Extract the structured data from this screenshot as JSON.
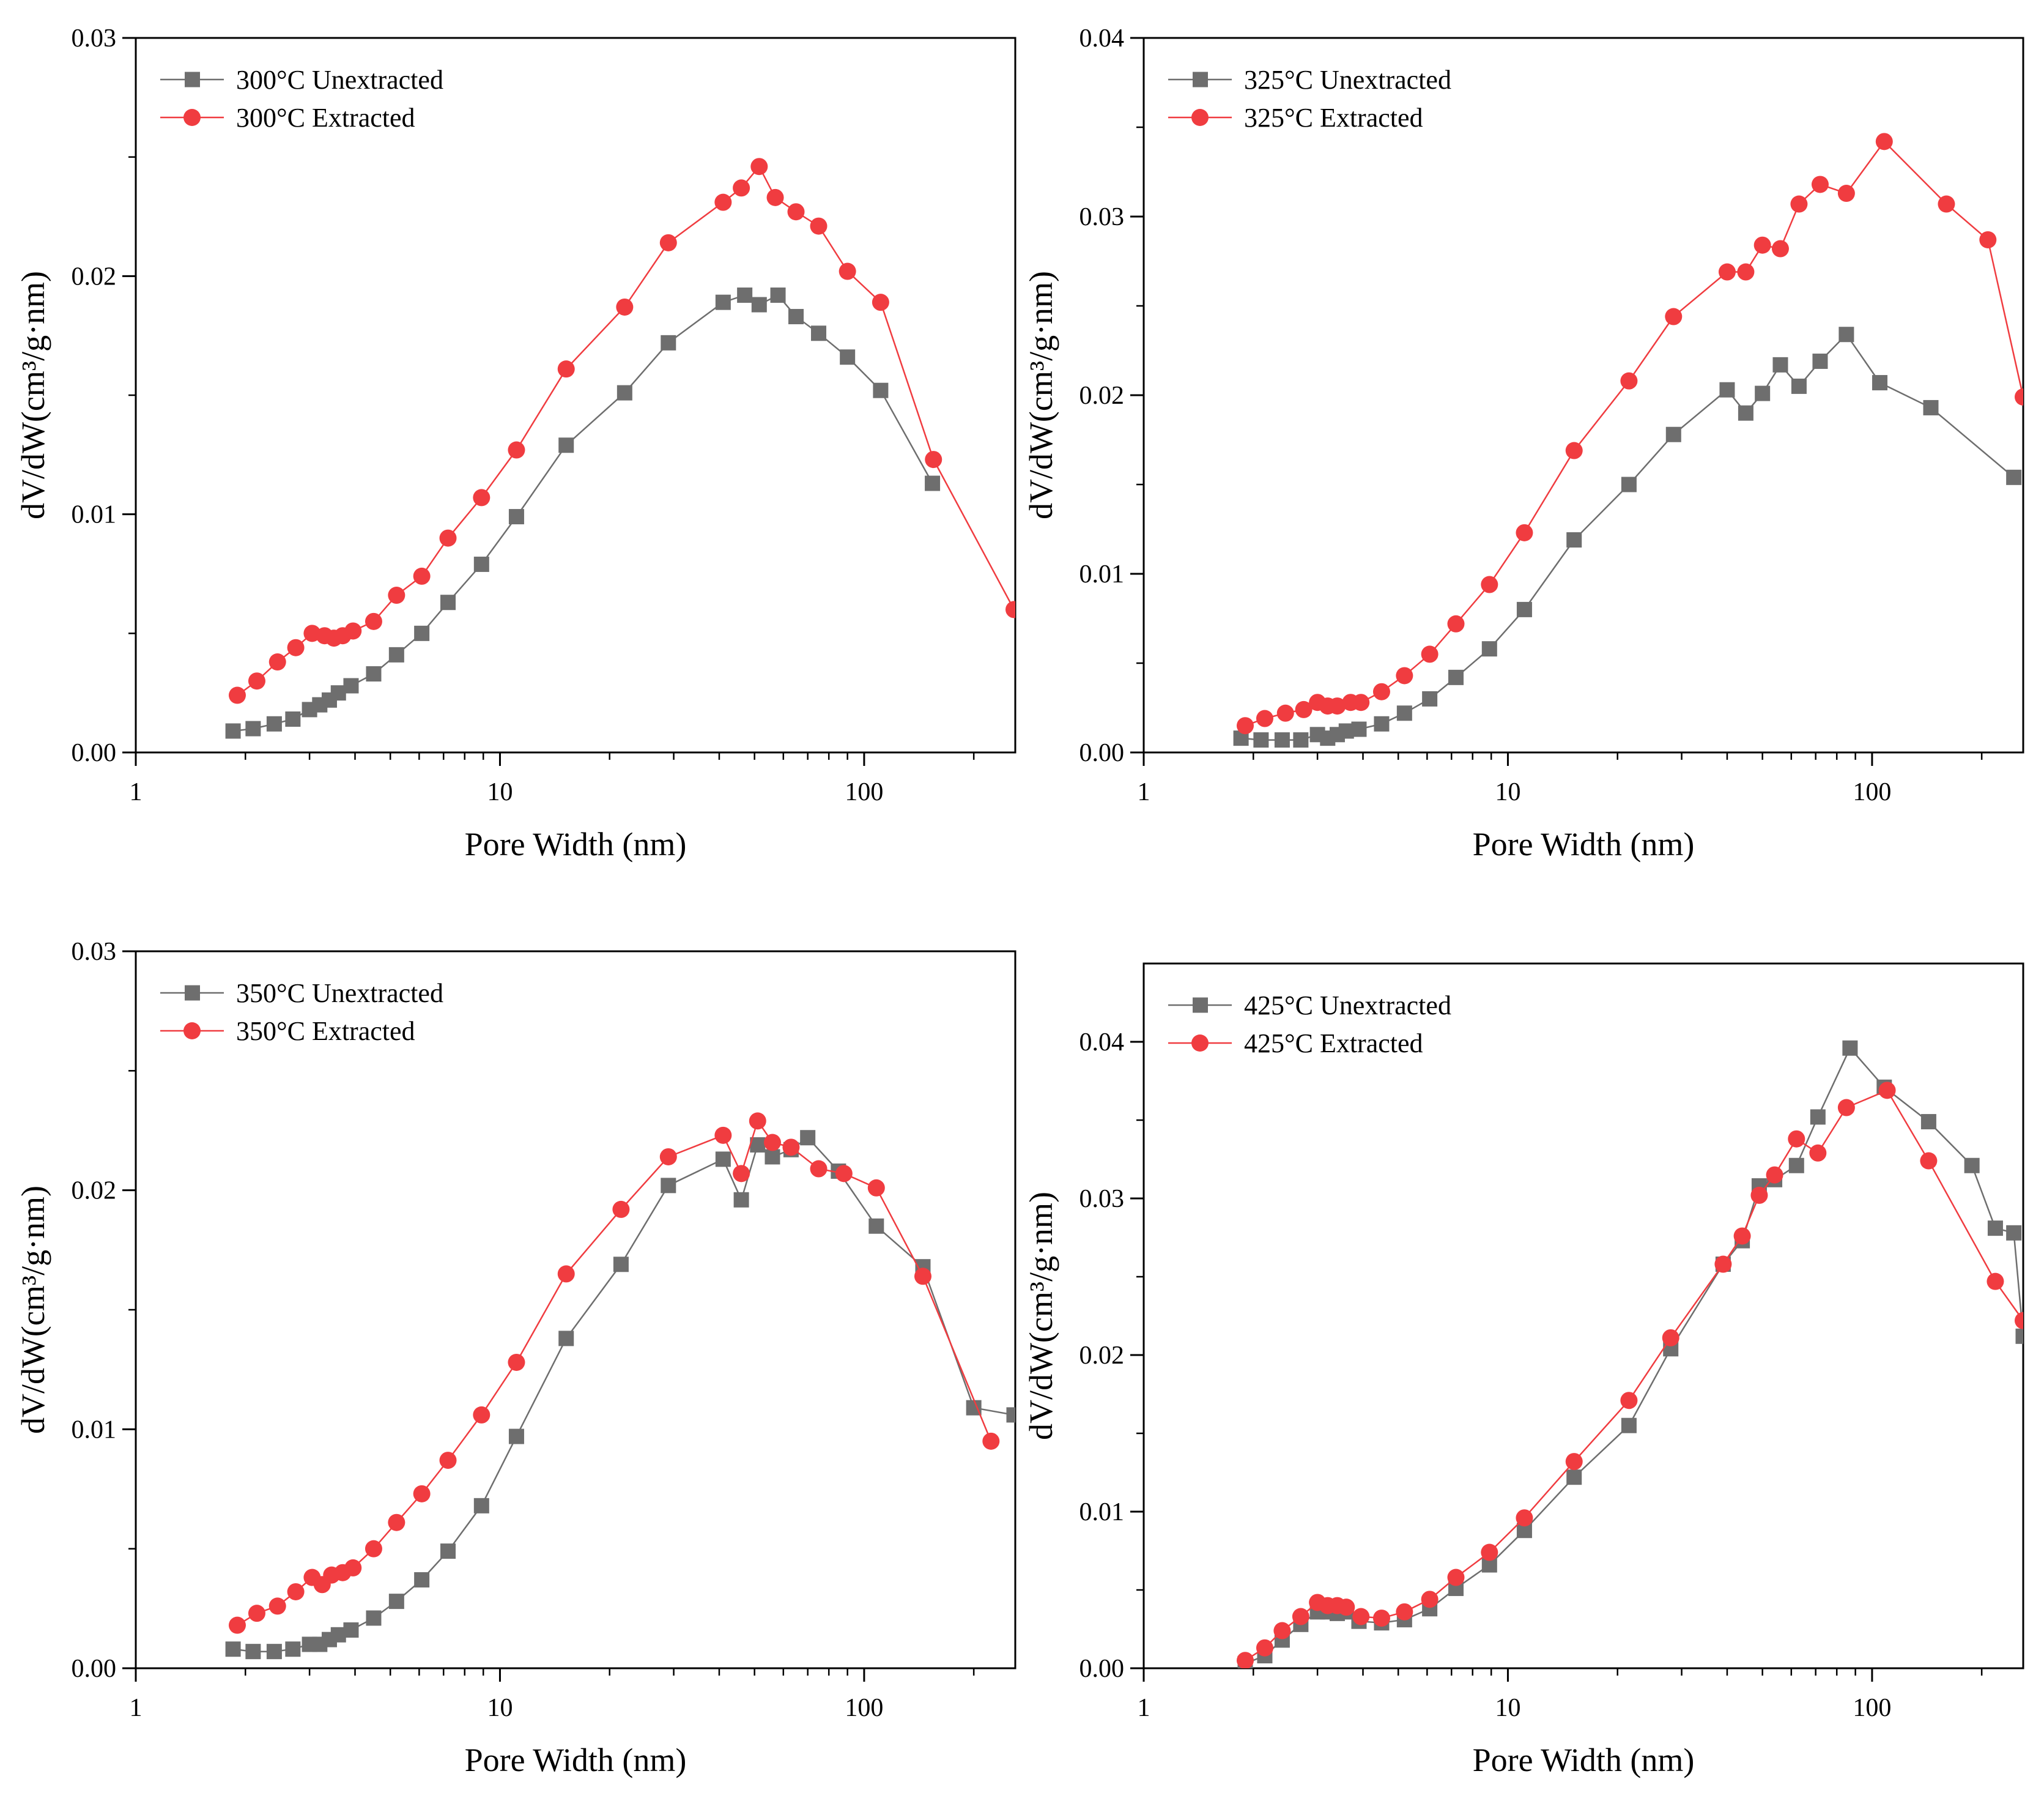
{
  "figure": {
    "colors": {
      "unextracted": "#6e6e6e",
      "extracted": "#f03c40",
      "axis": "#000000"
    }
  },
  "chart_data": [
    {
      "type": "line",
      "xscale": "log",
      "xlabel": "Pore Width (nm)",
      "ylabel": "dV/dW(cm³/g·nm)",
      "xlim": [
        1,
        260
      ],
      "ylim": [
        0,
        0.03
      ],
      "xticks": [
        1,
        10,
        100
      ],
      "xtick_labels": [
        "1",
        "10",
        "100"
      ],
      "yticks": [
        0,
        0.01,
        0.02,
        0.03
      ],
      "ytick_labels": [
        "0.00",
        "0.01",
        "0.02",
        "0.03"
      ],
      "legend_position": "top-left",
      "series": [
        {
          "name": "300°C Unextracted",
          "marker": "square",
          "x": [
            1.85,
            2.1,
            2.4,
            2.7,
            3.0,
            3.2,
            3.4,
            3.6,
            3.9,
            4.5,
            5.2,
            6.1,
            7.2,
            8.9,
            11.1,
            15.2,
            22.0,
            29.0,
            41.0,
            47.0,
            51.5,
            58.0,
            65.0,
            75.0,
            90.0,
            111.0,
            154.0
          ],
          "y": [
            0.0009,
            0.001,
            0.0012,
            0.0014,
            0.0018,
            0.002,
            0.0022,
            0.0025,
            0.0028,
            0.0033,
            0.0041,
            0.005,
            0.0063,
            0.0079,
            0.0099,
            0.0129,
            0.0151,
            0.0172,
            0.0189,
            0.0192,
            0.0188,
            0.0192,
            0.0183,
            0.0176,
            0.0166,
            0.0152,
            0.0113
          ]
        },
        {
          "name": "300°C Extracted",
          "marker": "circle",
          "x": [
            1.9,
            2.15,
            2.45,
            2.75,
            3.05,
            3.3,
            3.5,
            3.7,
            3.95,
            4.5,
            5.2,
            6.1,
            7.2,
            8.9,
            11.1,
            15.2,
            22.0,
            29.0,
            41.0,
            46.0,
            51.5,
            57.0,
            65.0,
            75.0,
            90.0,
            111.0,
            155.0,
            258.0
          ],
          "y": [
            0.0024,
            0.003,
            0.0038,
            0.0044,
            0.005,
            0.0049,
            0.0048,
            0.0049,
            0.0051,
            0.0055,
            0.0066,
            0.0074,
            0.009,
            0.0107,
            0.0127,
            0.0161,
            0.0187,
            0.0214,
            0.0231,
            0.0237,
            0.0246,
            0.0233,
            0.0227,
            0.0221,
            0.0202,
            0.0189,
            0.0123,
            0.006
          ]
        }
      ]
    },
    {
      "type": "line",
      "xscale": "log",
      "xlabel": "Pore Width (nm)",
      "ylabel": "dV/dW(cm³/g·nm)",
      "xlim": [
        1,
        260
      ],
      "ylim": [
        0,
        0.04
      ],
      "xticks": [
        1,
        10,
        100
      ],
      "xtick_labels": [
        "1",
        "10",
        "100"
      ],
      "yticks": [
        0,
        0.01,
        0.02,
        0.03,
        0.04
      ],
      "ytick_labels": [
        "0.00",
        "0.01",
        "0.02",
        "0.03",
        "0.04"
      ],
      "legend_position": "top-left",
      "series": [
        {
          "name": "325°C Unextracted",
          "marker": "square",
          "x": [
            1.85,
            2.1,
            2.4,
            2.7,
            3.0,
            3.2,
            3.4,
            3.6,
            3.9,
            4.5,
            5.2,
            6.1,
            7.2,
            8.9,
            11.1,
            15.2,
            21.5,
            28.5,
            40.0,
            45.0,
            50.0,
            56.0,
            63.0,
            72.0,
            85.0,
            105.0,
            145.0,
            245.0
          ],
          "y": [
            0.0008,
            0.0007,
            0.0007,
            0.0007,
            0.001,
            0.0008,
            0.001,
            0.0012,
            0.0013,
            0.0016,
            0.0022,
            0.003,
            0.0042,
            0.0058,
            0.008,
            0.0119,
            0.015,
            0.0178,
            0.0203,
            0.019,
            0.0201,
            0.0217,
            0.0205,
            0.0219,
            0.0234,
            0.0207,
            0.0193,
            0.0154
          ]
        },
        {
          "name": "325°C Extracted",
          "marker": "circle",
          "x": [
            1.9,
            2.15,
            2.45,
            2.75,
            3.0,
            3.2,
            3.4,
            3.7,
            3.95,
            4.5,
            5.2,
            6.1,
            7.2,
            8.9,
            11.1,
            15.2,
            21.5,
            28.5,
            40.0,
            45.0,
            50.0,
            56.0,
            63.0,
            72.0,
            85.0,
            108.0,
            160.0,
            208.0,
            260.0
          ],
          "y": [
            0.0015,
            0.0019,
            0.0022,
            0.0024,
            0.0028,
            0.0026,
            0.0026,
            0.0028,
            0.0028,
            0.0034,
            0.0043,
            0.0055,
            0.0072,
            0.0094,
            0.0123,
            0.0169,
            0.0208,
            0.0244,
            0.0269,
            0.0269,
            0.0284,
            0.0282,
            0.0307,
            0.0318,
            0.0313,
            0.0342,
            0.0307,
            0.0287,
            0.0199
          ]
        }
      ]
    },
    {
      "type": "line",
      "xscale": "log",
      "xlabel": "Pore Width (nm)",
      "ylabel": "dV/dW(cm³/g·nm)",
      "xlim": [
        1,
        260
      ],
      "ylim": [
        0,
        0.03
      ],
      "xticks": [
        1,
        10,
        100
      ],
      "xtick_labels": [
        "1",
        "10",
        "100"
      ],
      "yticks": [
        0,
        0.01,
        0.02,
        0.03
      ],
      "ytick_labels": [
        "0.00",
        "0.01",
        "0.02",
        "0.03"
      ],
      "legend_position": "top-left",
      "series": [
        {
          "name": "350°C Unextracted",
          "marker": "square",
          "x": [
            1.85,
            2.1,
            2.4,
            2.7,
            3.0,
            3.2,
            3.4,
            3.6,
            3.9,
            4.5,
            5.2,
            6.1,
            7.2,
            8.9,
            11.1,
            15.2,
            21.5,
            29.0,
            41.0,
            46.0,
            51.0,
            56.0,
            63.0,
            70.0,
            85.0,
            108.0,
            145.0,
            200.0,
            258.0
          ],
          "y": [
            0.0008,
            0.0007,
            0.0007,
            0.0008,
            0.001,
            0.001,
            0.0012,
            0.0014,
            0.0016,
            0.0021,
            0.0028,
            0.0037,
            0.0049,
            0.0068,
            0.0097,
            0.0138,
            0.0169,
            0.0202,
            0.0213,
            0.0196,
            0.0219,
            0.0214,
            0.0217,
            0.0222,
            0.0208,
            0.0185,
            0.0168,
            0.0109,
            0.0106
          ]
        },
        {
          "name": "350°C Extracted",
          "marker": "circle",
          "x": [
            1.9,
            2.15,
            2.45,
            2.75,
            3.05,
            3.25,
            3.45,
            3.7,
            3.95,
            4.5,
            5.2,
            6.1,
            7.2,
            8.9,
            11.1,
            15.2,
            21.5,
            29.0,
            41.0,
            46.0,
            51.0,
            56.0,
            63.0,
            75.0,
            88.0,
            108.0,
            145.0,
            223.0
          ],
          "y": [
            0.0018,
            0.0023,
            0.0026,
            0.0032,
            0.0038,
            0.0035,
            0.0039,
            0.004,
            0.0042,
            0.005,
            0.0061,
            0.0073,
            0.0087,
            0.0106,
            0.0128,
            0.0165,
            0.0192,
            0.0214,
            0.0223,
            0.0207,
            0.0229,
            0.022,
            0.0218,
            0.0209,
            0.0207,
            0.0201,
            0.0164,
            0.0095
          ]
        }
      ]
    },
    {
      "type": "line",
      "xscale": "log",
      "xlabel": "Pore Width (nm)",
      "ylabel": "dV/dW(cm³/g·nm)",
      "xlim": [
        1,
        260
      ],
      "ylim": [
        0,
        0.045
      ],
      "xticks": [
        1,
        10,
        100
      ],
      "xtick_labels": [
        "1",
        "10",
        "100"
      ],
      "yticks": [
        0,
        0.01,
        0.02,
        0.03,
        0.04
      ],
      "ytick_labels": [
        "0.00",
        "0.01",
        "0.02",
        "0.03",
        "0.04"
      ],
      "legend_position": "top-left",
      "series": [
        {
          "name": "425°C Unextracted",
          "marker": "square",
          "x": [
            1.9,
            2.15,
            2.4,
            2.7,
            3.0,
            3.2,
            3.4,
            3.6,
            3.9,
            4.5,
            5.2,
            6.1,
            7.2,
            8.9,
            11.1,
            15.2,
            21.5,
            28.0,
            39.0,
            44.0,
            49.0,
            54.0,
            62.0,
            71.0,
            87.0,
            108.0,
            143.0,
            188.0,
            218.0,
            245.0,
            260.0
          ],
          "y": [
            0.0003,
            0.0008,
            0.0018,
            0.0028,
            0.0036,
            0.0036,
            0.0035,
            0.0036,
            0.003,
            0.0029,
            0.0031,
            0.0038,
            0.0051,
            0.0066,
            0.0088,
            0.0122,
            0.0155,
            0.0204,
            0.0258,
            0.0273,
            0.0308,
            0.0312,
            0.0321,
            0.0352,
            0.0396,
            0.0371,
            0.0349,
            0.0321,
            0.0281,
            0.0278,
            0.0212
          ]
        },
        {
          "name": "425°C Extracted",
          "marker": "circle",
          "x": [
            1.9,
            2.15,
            2.4,
            2.7,
            3.0,
            3.2,
            3.4,
            3.6,
            3.95,
            4.5,
            5.2,
            6.1,
            7.2,
            8.9,
            11.1,
            15.2,
            21.5,
            28.0,
            39.0,
            44.0,
            49.0,
            54.0,
            62.0,
            71.0,
            85.0,
            110.0,
            143.0,
            218.0,
            260.0
          ],
          "y": [
            0.0005,
            0.0013,
            0.0024,
            0.0033,
            0.0042,
            0.004,
            0.004,
            0.0039,
            0.0033,
            0.0032,
            0.0036,
            0.0044,
            0.0058,
            0.0074,
            0.0096,
            0.0132,
            0.0171,
            0.0211,
            0.0258,
            0.0276,
            0.0302,
            0.0315,
            0.0338,
            0.0329,
            0.0358,
            0.0369,
            0.0324,
            0.0247,
            0.0222
          ]
        }
      ]
    }
  ]
}
